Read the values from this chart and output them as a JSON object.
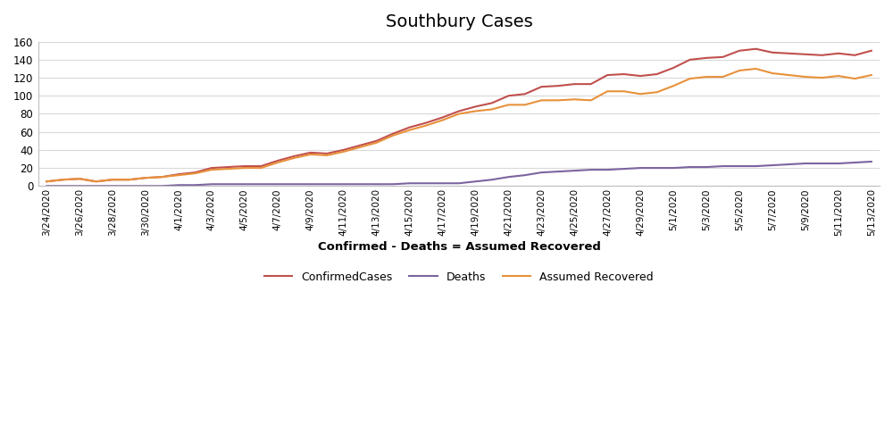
{
  "title": "Southbury Cases",
  "xlabel": "Confirmed - Deaths = Assumed Recovered",
  "dates": [
    "3/24/2020",
    "3/25/2020",
    "3/26/2020",
    "3/27/2020",
    "3/28/2020",
    "3/29/2020",
    "3/30/2020",
    "3/31/2020",
    "4/1/2020",
    "4/2/2020",
    "4/3/2020",
    "4/4/2020",
    "4/5/2020",
    "4/6/2020",
    "4/7/2020",
    "4/8/2020",
    "4/9/2020",
    "4/10/2020",
    "4/11/2020",
    "4/12/2020",
    "4/13/2020",
    "4/14/2020",
    "4/15/2020",
    "4/16/2020",
    "4/17/2020",
    "4/18/2020",
    "4/19/2020",
    "4/20/2020",
    "4/21/2020",
    "4/22/2020",
    "4/23/2020",
    "4/24/2020",
    "4/25/2020",
    "4/26/2020",
    "4/27/2020",
    "4/28/2020",
    "4/29/2020",
    "4/30/2020",
    "5/1/2020",
    "5/2/2020",
    "5/3/2020",
    "5/4/2020",
    "5/5/2020",
    "5/6/2020",
    "5/7/2020",
    "5/8/2020",
    "5/9/2020",
    "5/10/2020",
    "5/11/2020",
    "5/12/2020",
    "5/13/2020"
  ],
  "confirmed": [
    5,
    7,
    8,
    5,
    7,
    7,
    9,
    10,
    13,
    15,
    20,
    21,
    22,
    22,
    28,
    33,
    37,
    36,
    40,
    45,
    50,
    58,
    65,
    70,
    76,
    83,
    88,
    92,
    100,
    102,
    110,
    111,
    113,
    113,
    123,
    124,
    122,
    124,
    131,
    140,
    142,
    143,
    150,
    152,
    148,
    147,
    146,
    145,
    147,
    145,
    150
  ],
  "deaths": [
    0,
    0,
    0,
    0,
    0,
    0,
    0,
    0,
    1,
    1,
    2,
    2,
    2,
    2,
    2,
    2,
    2,
    2,
    2,
    2,
    2,
    2,
    3,
    3,
    3,
    3,
    5,
    7,
    10,
    12,
    15,
    16,
    17,
    18,
    18,
    19,
    20,
    20,
    20,
    21,
    21,
    22,
    22,
    22,
    23,
    24,
    25,
    25,
    25,
    26,
    27
  ],
  "recovered": [
    5,
    7,
    8,
    5,
    7,
    7,
    9,
    10,
    12,
    14,
    18,
    19,
    20,
    20,
    26,
    31,
    35,
    34,
    38,
    43,
    48,
    56,
    62,
    67,
    73,
    80,
    83,
    85,
    90,
    90,
    95,
    95,
    96,
    95,
    105,
    105,
    102,
    104,
    111,
    119,
    121,
    121,
    128,
    130,
    125,
    123,
    121,
    120,
    122,
    119,
    123
  ],
  "confirmed_color": "#C0504D",
  "deaths_color": "#7B64A0",
  "recovered_color": "#E8913B",
  "ylim": [
    0,
    160
  ],
  "yticks": [
    0,
    20,
    40,
    60,
    80,
    100,
    120,
    140,
    160
  ],
  "title_fontsize": 14,
  "legend_entries": [
    "ConfirmedCases",
    "Deaths",
    "Assumed Recovered"
  ],
  "xtick_labels": [
    "3/24/2020",
    "3/26/2020",
    "3/28/2020",
    "3/30/2020",
    "4/1/2020",
    "4/3/2020",
    "4/5/2020",
    "4/7/2020",
    "4/9/2020",
    "4/11/2020",
    "4/13/2020",
    "4/15/2020",
    "4/17/2020",
    "4/19/2020",
    "4/21/2020",
    "4/23/2020",
    "4/25/2020",
    "4/27/2020",
    "4/29/2020",
    "5/1/2020",
    "5/3/2020",
    "5/5/2020",
    "5/7/2020",
    "5/9/2020",
    "5/11/2020",
    "5/13/2020"
  ],
  "bg_color": "#FFFFFF",
  "grid_color": "#D9D9D9",
  "spine_color": "#BFBFBF"
}
